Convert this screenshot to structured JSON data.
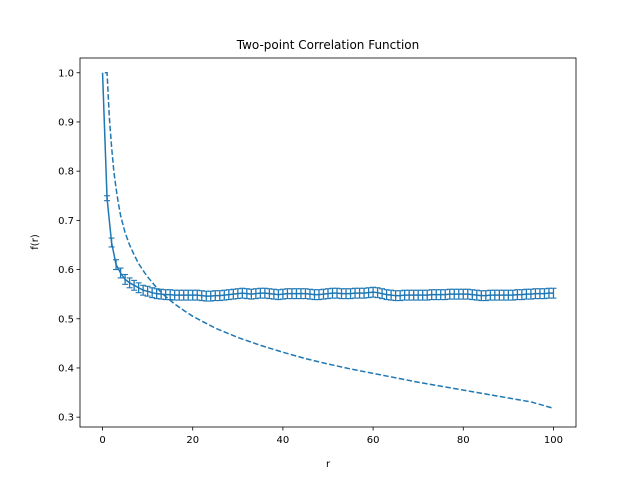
{
  "chart_data": {
    "type": "line",
    "title": "Two-point Correlation Function",
    "xlabel": "r",
    "ylabel": "f(r)",
    "xlim": [
      -5,
      105
    ],
    "ylim": [
      0.28,
      1.03
    ],
    "xticks": [
      0,
      20,
      40,
      60,
      80,
      100
    ],
    "yticks": [
      0.3,
      0.4,
      0.5,
      0.6,
      0.7,
      0.8,
      0.9,
      1.0
    ],
    "xtick_labels": [
      "0",
      "20",
      "40",
      "60",
      "80",
      "100"
    ],
    "ytick_labels": [
      "0.3",
      "0.4",
      "0.5",
      "0.6",
      "0.7",
      "0.8",
      "0.9",
      "1.0"
    ],
    "grid": false,
    "legend": false,
    "color": "#1f77b4",
    "series": [
      {
        "style": "solid",
        "error_bars": true,
        "x": [
          0,
          1,
          2,
          3,
          4,
          5,
          6,
          7,
          8,
          9,
          10,
          11,
          12,
          13,
          14,
          15,
          16,
          17,
          18,
          19,
          20,
          21,
          22,
          23,
          24,
          25,
          26,
          27,
          28,
          29,
          30,
          31,
          32,
          33,
          34,
          35,
          36,
          37,
          38,
          39,
          40,
          41,
          42,
          43,
          44,
          45,
          46,
          47,
          48,
          49,
          50,
          51,
          52,
          53,
          54,
          55,
          56,
          57,
          58,
          59,
          60,
          61,
          62,
          63,
          64,
          65,
          66,
          67,
          68,
          69,
          70,
          71,
          72,
          73,
          74,
          75,
          76,
          77,
          78,
          79,
          80,
          81,
          82,
          83,
          84,
          85,
          86,
          87,
          88,
          89,
          90,
          91,
          92,
          93,
          94,
          95,
          96,
          97,
          98,
          99,
          100
        ],
        "y": [
          1.0,
          0.745,
          0.655,
          0.61,
          0.593,
          0.58,
          0.573,
          0.568,
          0.563,
          0.558,
          0.556,
          0.553,
          0.551,
          0.55,
          0.549,
          0.549,
          0.548,
          0.548,
          0.548,
          0.548,
          0.548,
          0.548,
          0.547,
          0.546,
          0.546,
          0.547,
          0.547,
          0.548,
          0.549,
          0.55,
          0.551,
          0.552,
          0.551,
          0.55,
          0.551,
          0.552,
          0.552,
          0.551,
          0.55,
          0.549,
          0.55,
          0.551,
          0.551,
          0.551,
          0.551,
          0.551,
          0.55,
          0.549,
          0.549,
          0.55,
          0.551,
          0.552,
          0.552,
          0.551,
          0.551,
          0.551,
          0.552,
          0.552,
          0.552,
          0.553,
          0.554,
          0.553,
          0.551,
          0.549,
          0.548,
          0.547,
          0.547,
          0.548,
          0.548,
          0.548,
          0.548,
          0.548,
          0.548,
          0.549,
          0.549,
          0.549,
          0.549,
          0.55,
          0.55,
          0.55,
          0.55,
          0.55,
          0.549,
          0.548,
          0.547,
          0.547,
          0.548,
          0.548,
          0.548,
          0.548,
          0.548,
          0.548,
          0.549,
          0.549,
          0.55,
          0.55,
          0.551,
          0.551,
          0.551,
          0.552,
          0.552
        ],
        "err": [
          0,
          0.005,
          0.009,
          0.01,
          0.01,
          0.01,
          0.01,
          0.01,
          0.01,
          0.01,
          0.01,
          0.01,
          0.01,
          0.01,
          0.01,
          0.01,
          0.01,
          0.01,
          0.01,
          0.01,
          0.01,
          0.01,
          0.01,
          0.01,
          0.01,
          0.01,
          0.01,
          0.01,
          0.01,
          0.01,
          0.01,
          0.01,
          0.01,
          0.01,
          0.01,
          0.01,
          0.01,
          0.01,
          0.01,
          0.01,
          0.01,
          0.01,
          0.01,
          0.01,
          0.01,
          0.01,
          0.01,
          0.01,
          0.01,
          0.01,
          0.01,
          0.01,
          0.01,
          0.01,
          0.01,
          0.01,
          0.01,
          0.01,
          0.01,
          0.01,
          0.01,
          0.01,
          0.01,
          0.01,
          0.01,
          0.01,
          0.01,
          0.01,
          0.01,
          0.01,
          0.01,
          0.01,
          0.01,
          0.01,
          0.01,
          0.01,
          0.01,
          0.01,
          0.01,
          0.01,
          0.01,
          0.01,
          0.01,
          0.01,
          0.01,
          0.01,
          0.01,
          0.01,
          0.01,
          0.01,
          0.01,
          0.01,
          0.01,
          0.01,
          0.01,
          0.01,
          0.01,
          0.01,
          0.01,
          0.01,
          0.01
        ]
      },
      {
        "style": "dashed",
        "x": [
          0.5,
          1,
          1.5,
          2,
          2.5,
          3,
          3.5,
          4,
          5,
          6,
          7,
          8,
          9,
          10,
          12,
          14,
          16,
          18,
          20,
          25,
          30,
          35,
          40,
          45,
          50,
          55,
          60,
          65,
          70,
          75,
          80,
          85,
          90,
          95,
          100
        ],
        "y": [
          1.0,
          1.0,
          0.91,
          0.85,
          0.8,
          0.765,
          0.735,
          0.71,
          0.675,
          0.65,
          0.63,
          0.612,
          0.598,
          0.585,
          0.563,
          0.545,
          0.53,
          0.517,
          0.505,
          0.481,
          0.462,
          0.446,
          0.432,
          0.419,
          0.408,
          0.398,
          0.389,
          0.38,
          0.371,
          0.363,
          0.355,
          0.347,
          0.339,
          0.331,
          0.318
        ]
      }
    ]
  }
}
